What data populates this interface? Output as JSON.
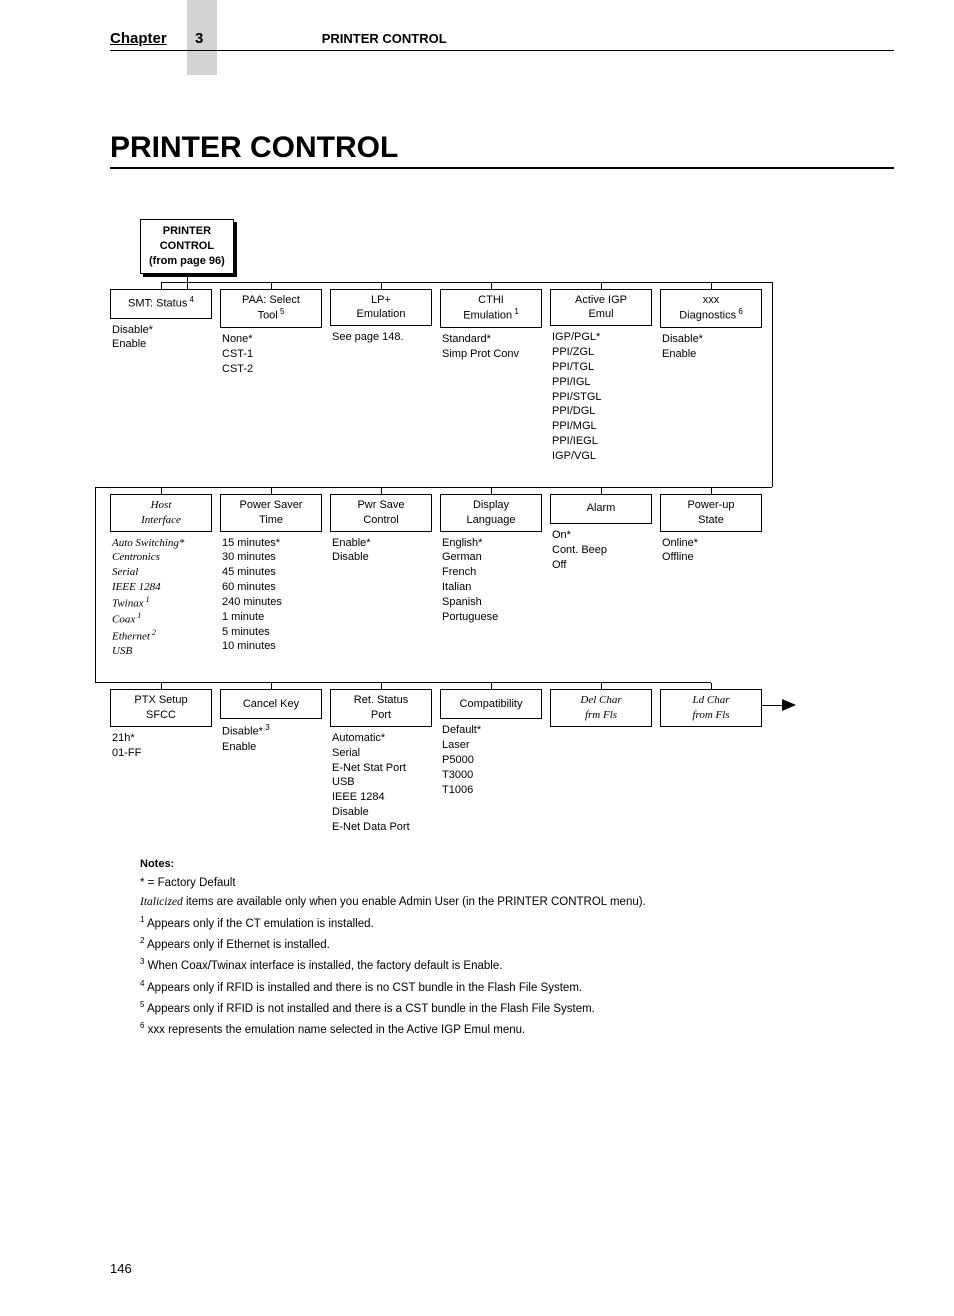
{
  "header": {
    "chapter_word": "Chapter",
    "chapter_num": "3",
    "section": "PRINTER CONTROL"
  },
  "title": "PRINTER CONTROL",
  "root": {
    "line1": "PRINTER",
    "line2": "CONTROL",
    "line3": "(from page 96)"
  },
  "row1": [
    {
      "label": "SMT: Status",
      "sup": "4",
      "opts": [
        "Disable*",
        "Enable"
      ]
    },
    {
      "label1": "PAA: Select",
      "label2": "Tool",
      "sup": "5",
      "opts": [
        "None*",
        "CST-1",
        "CST-2"
      ]
    },
    {
      "label1": "LP+",
      "label2": "Emulation",
      "opts": [
        "See page 148."
      ]
    },
    {
      "label1": "CTHI",
      "label2": "Emulation",
      "sup": "1",
      "opts": [
        "Standard*",
        "Simp Prot Conv"
      ]
    },
    {
      "label1": "Active IGP",
      "label2": "Emul",
      "opts": [
        "IGP/PGL*",
        "PPI/ZGL",
        "PPI/TGL",
        "PPI/IGL",
        "PPI/STGL",
        "PPI/DGL",
        "PPI/MGL",
        "PPI/IEGL",
        "IGP/VGL"
      ]
    },
    {
      "label1": "xxx",
      "label2": "Diagnostics",
      "sup": "6",
      "opts": [
        "Disable*",
        "Enable"
      ]
    }
  ],
  "row2": [
    {
      "label1": "Host",
      "label2": "Interface",
      "italic": true,
      "opts_italic": true,
      "opts": [
        "Auto Switching*",
        "Centronics",
        "Serial",
        "IEEE 1284"
      ],
      "opts2": [
        {
          "text": "Twinax",
          "sup": "1"
        },
        {
          "text": "Coax",
          "sup": "1"
        },
        {
          "text": "Ethernet",
          "sup": "2"
        },
        {
          "text": "USB"
        }
      ]
    },
    {
      "label1": "Power Saver",
      "label2": "Time",
      "opts": [
        "15 minutes*",
        "30 minutes",
        "45 minutes",
        "60 minutes",
        "240 minutes",
        "1 minute",
        "5 minutes",
        "10 minutes"
      ]
    },
    {
      "label1": "Pwr Save",
      "label2": "Control",
      "opts": [
        "Enable*",
        "Disable"
      ]
    },
    {
      "label1": "Display",
      "label2": "Language",
      "opts": [
        "English*",
        "German",
        "French",
        "Italian",
        "Spanish",
        "Portuguese"
      ]
    },
    {
      "label": "Alarm",
      "opts": [
        "On*",
        "Cont. Beep",
        "Off"
      ]
    },
    {
      "label1": "Power-up",
      "label2": "State",
      "opts": [
        "Online*",
        "Offline"
      ]
    }
  ],
  "row3": [
    {
      "label1": "PTX Setup",
      "label2": "SFCC",
      "opts": [
        "21h*",
        "01-FF"
      ]
    },
    {
      "label": "Cancel Key",
      "opts_mixed": [
        {
          "text": "Disable*",
          "sup": "3"
        },
        {
          "text": "Enable"
        }
      ]
    },
    {
      "label1": "Ret. Status",
      "label2": "Port",
      "opts": [
        "Automatic*",
        "Serial",
        "E-Net Stat Port",
        "USB",
        "IEEE 1284",
        "Disable",
        "E-Net Data Port"
      ]
    },
    {
      "label": "Compatibility",
      "opts": [
        "Default*",
        "Laser",
        "P5000",
        "T3000",
        "T1006"
      ]
    },
    {
      "label1": "Del Char",
      "label2": "frm Fls",
      "italic": true,
      "opts": []
    },
    {
      "label1": "Ld Char",
      "label2": "from Fls",
      "italic": true,
      "opts": []
    }
  ],
  "notes": {
    "heading": "Notes:",
    "items": [
      {
        "text": "* = Factory Default"
      },
      {
        "italic_prefix": "Italicized",
        "text": " items are available only when you enable Admin User (in the PRINTER CONTROL menu)."
      },
      {
        "sup": "1",
        "text": " Appears only if the CT emulation is installed."
      },
      {
        "sup": "2",
        "text": " Appears only if Ethernet is installed."
      },
      {
        "sup": "3",
        "text": " When Coax/Twinax interface is installed, the factory default is Enable."
      },
      {
        "sup": "4",
        "text": " Appears only if RFID is installed and there is no CST bundle in the Flash File System."
      },
      {
        "sup": "5",
        "text": " Appears only if RFID is not installed and there is a CST bundle in the Flash File System."
      },
      {
        "sup": "6",
        "text": " xxx represents the emulation name selected in the Active IGP Emul menu."
      }
    ]
  },
  "page_number": "146"
}
